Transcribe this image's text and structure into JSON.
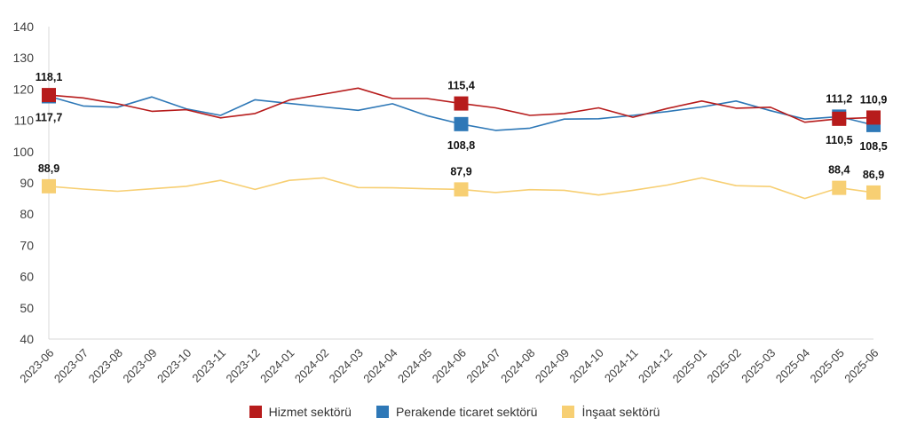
{
  "chart_data": {
    "type": "line",
    "categories": [
      "2023-06",
      "2023-07",
      "2023-08",
      "2023-09",
      "2023-10",
      "2023-11",
      "2023-12",
      "2024-01",
      "2024-02",
      "2024-03",
      "2024-04",
      "2024-05",
      "2024-06",
      "2024-07",
      "2024-08",
      "2024-09",
      "2024-10",
      "2024-11",
      "2024-12",
      "2025-01",
      "2025-02",
      "2025-03",
      "2025-04",
      "2025-05",
      "2025-06"
    ],
    "ylim": [
      40,
      140
    ],
    "yticks": [
      40,
      50,
      60,
      70,
      80,
      90,
      100,
      110,
      120,
      130,
      140
    ],
    "grid": false,
    "legend_position": "bottom",
    "series": [
      {
        "name": "Hizmet sektörü",
        "color": "#b71c1c",
        "values": [
          118.1,
          117.2,
          115.3,
          112.9,
          113.4,
          110.8,
          112.2,
          116.5,
          118.4,
          120.3,
          117.0,
          117.0,
          115.4,
          114.0,
          111.6,
          112.2,
          114.0,
          111.0,
          113.8,
          116.2,
          113.9,
          114.2,
          109.4,
          110.5,
          110.9
        ],
        "markers": [
          {
            "index": 0,
            "label": "118,1",
            "pos": "above"
          },
          {
            "index": 12,
            "label": "115,4",
            "pos": "above"
          },
          {
            "index": 23,
            "label": "110,5",
            "pos": "below"
          },
          {
            "index": 24,
            "label": "110,9",
            "pos": "above"
          }
        ]
      },
      {
        "name": "Perakende ticaret sektörü",
        "color": "#2e78b7",
        "values": [
          117.7,
          114.6,
          114.2,
          117.5,
          113.7,
          111.6,
          116.6,
          115.4,
          114.3,
          113.2,
          115.3,
          111.5,
          108.8,
          106.8,
          107.5,
          110.4,
          110.5,
          111.6,
          112.8,
          114.3,
          116.2,
          113.1,
          110.4,
          111.2,
          108.5
        ],
        "markers": [
          {
            "index": 0,
            "label": "117,7",
            "pos": "below"
          },
          {
            "index": 12,
            "label": "108,8",
            "pos": "below"
          },
          {
            "index": 23,
            "label": "111,2",
            "pos": "above"
          },
          {
            "index": 24,
            "label": "108,5",
            "pos": "below"
          }
        ]
      },
      {
        "name": "İnşaat sektörü",
        "color": "#f7cf73",
        "values": [
          88.9,
          88.0,
          87.3,
          88.1,
          88.9,
          90.8,
          87.9,
          90.8,
          91.6,
          88.5,
          88.4,
          88.1,
          87.9,
          86.9,
          87.8,
          87.6,
          86.1,
          87.6,
          89.3,
          91.6,
          89.1,
          88.8,
          85.0,
          88.4,
          86.9
        ],
        "markers": [
          {
            "index": 0,
            "label": "88,9",
            "pos": "above"
          },
          {
            "index": 12,
            "label": "87,9",
            "pos": "above"
          },
          {
            "index": 23,
            "label": "88,4",
            "pos": "above"
          },
          {
            "index": 24,
            "label": "86,9",
            "pos": "above"
          }
        ]
      }
    ]
  }
}
